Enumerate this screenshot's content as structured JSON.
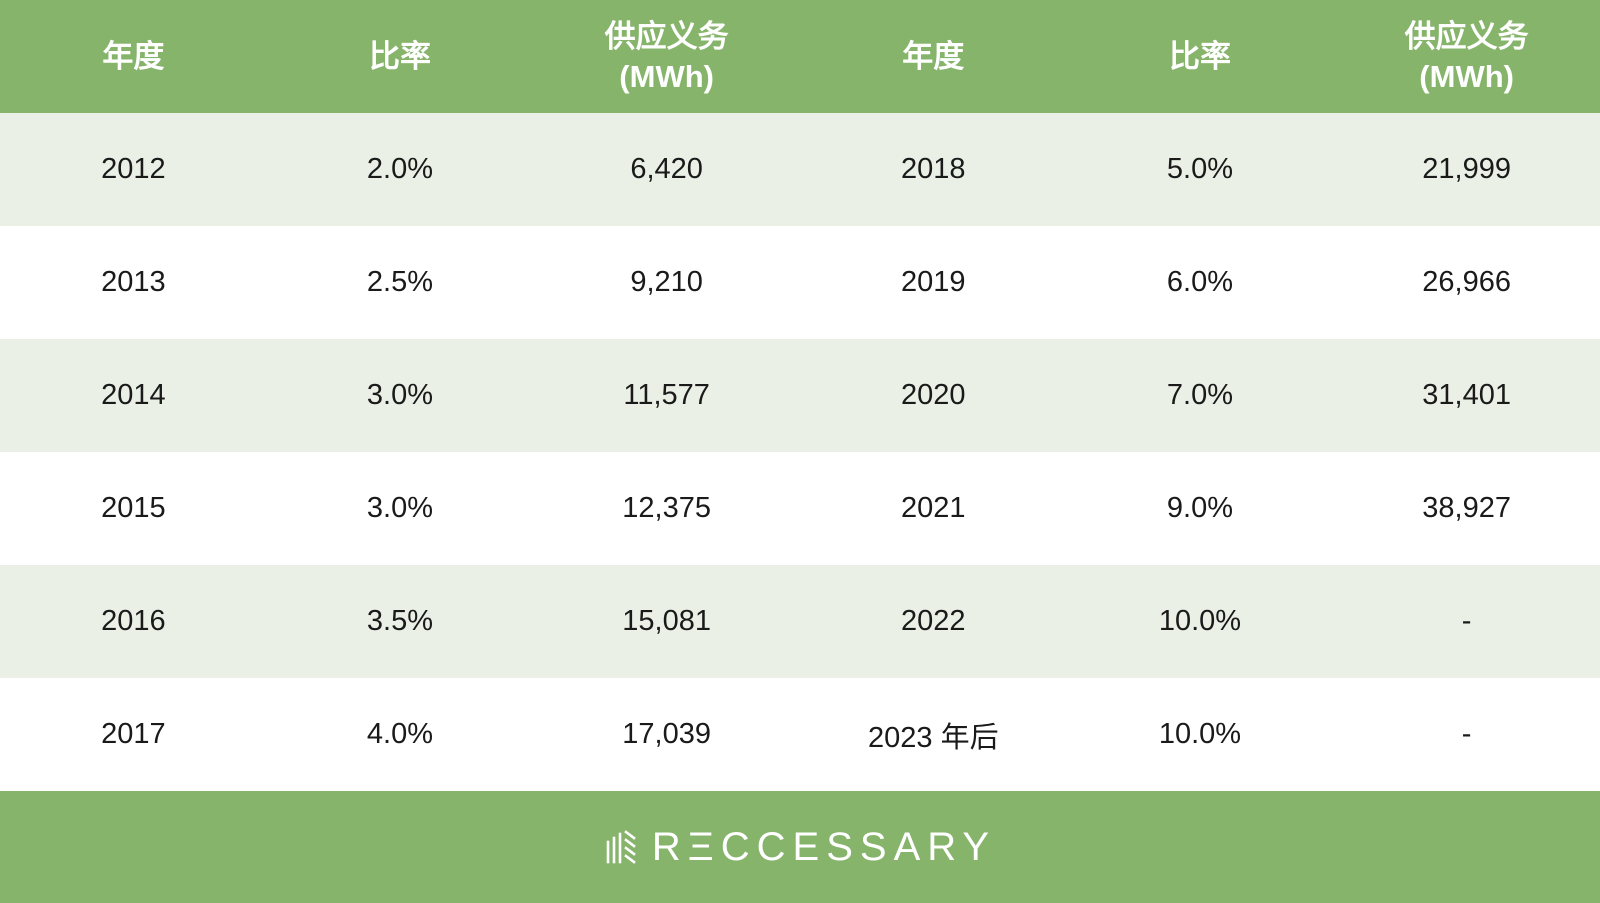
{
  "colors": {
    "header_green": "#86b46b",
    "row_shade": "#eaf0e6",
    "row_plain": "#ffffff",
    "text": "#1a1a1a"
  },
  "header": [
    {
      "line1": "年度",
      "line2": ""
    },
    {
      "line1": "比率",
      "line2": ""
    },
    {
      "line1": "供应义务",
      "line2": "(MWh)"
    },
    {
      "line1": "年度",
      "line2": ""
    },
    {
      "line1": "比率",
      "line2": ""
    },
    {
      "line1": "供应义务",
      "line2": "(MWh)"
    }
  ],
  "rows": [
    [
      "2012",
      "2.0%",
      "6,420",
      "2018",
      "5.0%",
      "21,999"
    ],
    [
      "2013",
      "2.5%",
      "9,210",
      "2019",
      "6.0%",
      "26,966"
    ],
    [
      "2014",
      "3.0%",
      "11,577",
      "2020",
      "7.0%",
      "31,401"
    ],
    [
      "2015",
      "3.0%",
      "12,375",
      "2021",
      "9.0%",
      "38,927"
    ],
    [
      "2016",
      "3.5%",
      "15,081",
      "2022",
      "10.0%",
      "-"
    ],
    [
      "2017",
      "4.0%",
      "17,039",
      "2023 年后",
      "10.0%",
      "-"
    ]
  ],
  "footer": {
    "logo_text": "RΞCCESSARY",
    "logo_icon": "reccessary-logo-icon"
  }
}
